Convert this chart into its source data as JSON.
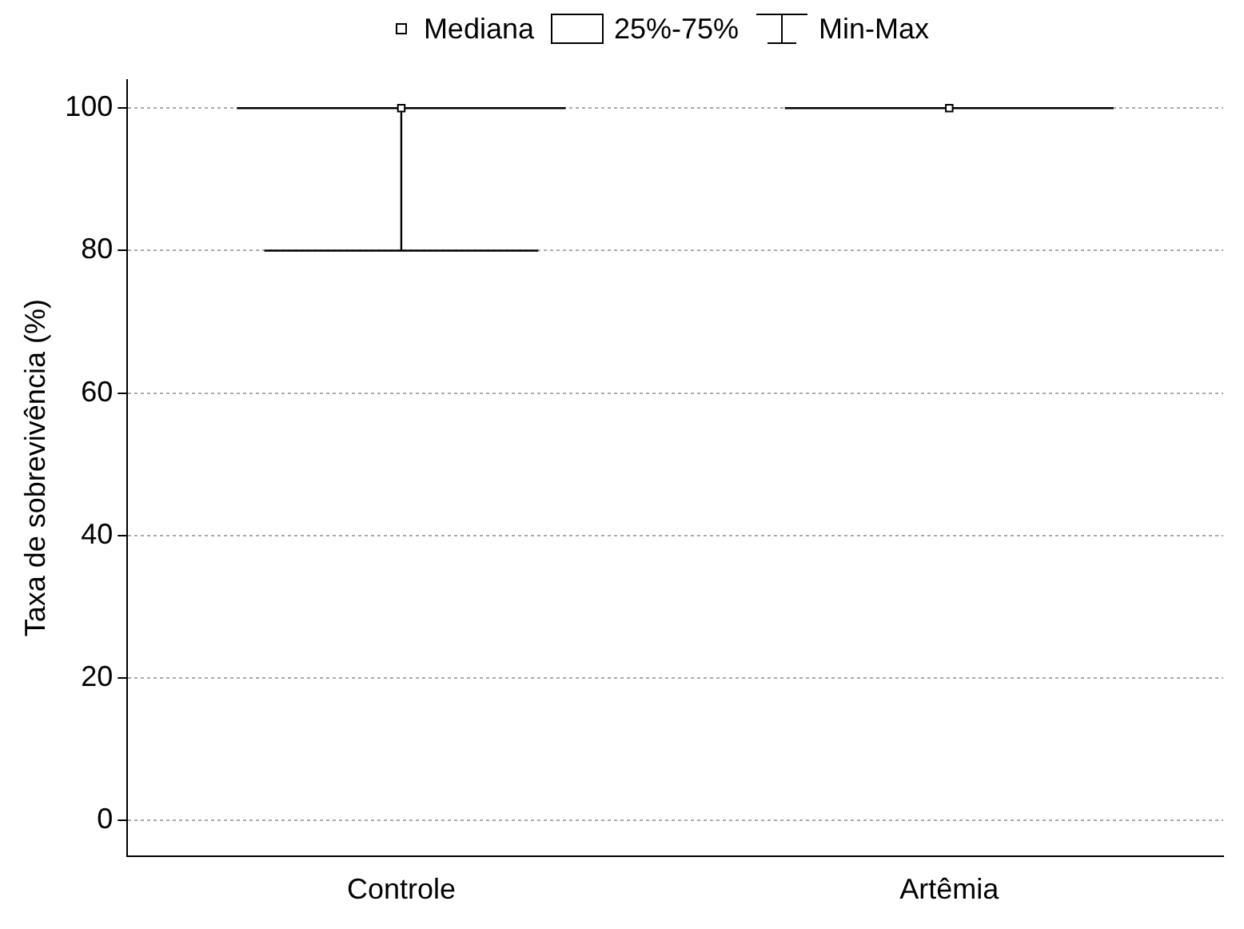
{
  "chart_data": {
    "type": "box",
    "ylabel": "Taxa de sobrevivência (%)",
    "categories": [
      "Controle",
      "Artêmia"
    ],
    "boxes": [
      {
        "low": 80,
        "q1": 100,
        "median": 100,
        "q3": 100,
        "high": 100
      },
      {
        "low": 100,
        "q1": 100,
        "median": 100,
        "q3": 100,
        "high": 100
      }
    ],
    "color": "#000000",
    "series": [
      {
        "name": "Mediana",
        "type": "scatter",
        "x": [
          "Controle",
          "Artêmia"
        ],
        "values": [
          100,
          100
        ],
        "color": "#000000"
      }
    ],
    "marker": "square",
    "ylim": [
      -5,
      104
    ],
    "yticks": [
      0,
      20,
      40,
      60,
      80,
      100
    ],
    "grid": "y",
    "legend": "top",
    "annotations": [
      "25%-75%",
      "Min-Max"
    ]
  }
}
